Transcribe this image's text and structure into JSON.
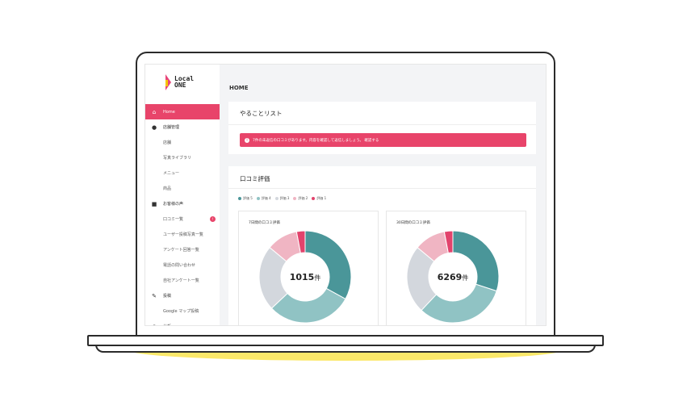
{
  "logo": {
    "line1": "Local",
    "line2": "ONE"
  },
  "sidebar": {
    "items": [
      {
        "label": "Home",
        "icon": "home-icon",
        "active": true
      },
      {
        "label": "店舗管理",
        "icon": "store-icon"
      },
      {
        "label": "店舗",
        "sub": true
      },
      {
        "label": "写真ライブラリ",
        "sub": true
      },
      {
        "label": "メニュー",
        "sub": true
      },
      {
        "label": "商品",
        "sub": true
      },
      {
        "label": "お客様の声",
        "icon": "comment-icon"
      },
      {
        "label": "口コミ一覧",
        "sub": true,
        "badge": "!"
      },
      {
        "label": "ユーザー投稿写真一覧",
        "sub": true
      },
      {
        "label": "アンケート回答一覧",
        "sub": true
      },
      {
        "label": "電話の問い合わせ",
        "sub": true
      },
      {
        "label": "自社アンケート一覧",
        "sub": true
      },
      {
        "label": "投稿",
        "icon": "edit-icon"
      },
      {
        "label": "Google マップ投稿",
        "sub": true
      },
      {
        "label": "分析",
        "icon": "chart-icon"
      }
    ]
  },
  "header": {
    "title": "HOME"
  },
  "todo": {
    "title": "やることリスト",
    "alert": "7件の未返信の口コミがあります。内容を確認して返信しましょう。 確認する"
  },
  "reviews": {
    "title": "口コミ評価",
    "legend": [
      {
        "label": "評価 5",
        "color": "#4a9699"
      },
      {
        "label": "評価 4",
        "color": "#90c3c4"
      },
      {
        "label": "評価 3",
        "color": "#d3d7dd"
      },
      {
        "label": "評価 2",
        "color": "#f0b5c3"
      },
      {
        "label": "評価 1",
        "color": "#e2436c"
      }
    ]
  },
  "chart_data": [
    {
      "type": "pie",
      "title": "7日間の口コミ評価",
      "total": "1015",
      "unit": "件",
      "labels": [
        "評価 5",
        "評価 4",
        "評価 3",
        "評価 2",
        "評価 1"
      ],
      "values": [
        33,
        30,
        23,
        11,
        3
      ],
      "colors": [
        "#4a9699",
        "#90c3c4",
        "#d3d7dd",
        "#f0b5c3",
        "#e2436c"
      ]
    },
    {
      "type": "pie",
      "title": "30日間の口コミ評価",
      "total": "6269",
      "unit": "件",
      "labels": [
        "評価 5",
        "評価 4",
        "評価 3",
        "評価 2",
        "評価 1"
      ],
      "values": [
        30,
        32,
        24,
        11,
        3
      ],
      "colors": [
        "#4a9699",
        "#90c3c4",
        "#d3d7dd",
        "#f0b5c3",
        "#e2436c"
      ]
    }
  ]
}
